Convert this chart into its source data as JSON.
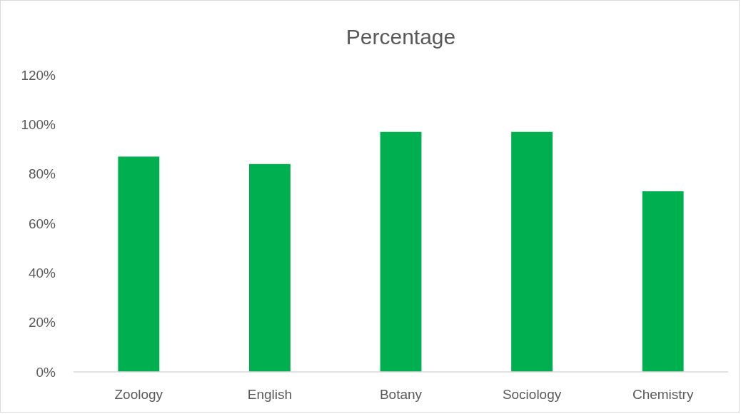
{
  "chart_data": {
    "type": "bar",
    "title": "Percentage",
    "categories": [
      "Zoology",
      "English",
      "Botany",
      "Sociology",
      "Chemistry"
    ],
    "values": [
      87,
      84,
      97,
      97,
      73
    ],
    "color": "#00b050",
    "ylim": [
      0,
      120
    ],
    "yticks": [
      {
        "value": 0,
        "label": "0%"
      },
      {
        "value": 20,
        "label": "20%"
      },
      {
        "value": 40,
        "label": "40%"
      },
      {
        "value": 60,
        "label": "60%"
      },
      {
        "value": 80,
        "label": "80%"
      },
      {
        "value": 100,
        "label": "100%"
      },
      {
        "value": 120,
        "label": "120%"
      }
    ],
    "grid": false
  }
}
